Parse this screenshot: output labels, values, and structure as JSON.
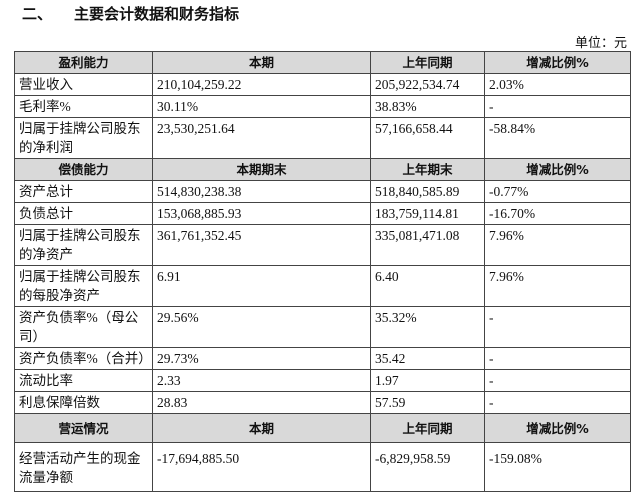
{
  "header": {
    "number": "二、",
    "title": "主要会计数据和财务指标",
    "unit": "单位：元"
  },
  "table": {
    "sections": [
      {
        "header": [
          "盈利能力",
          "本期",
          "上年同期",
          "增减比例%"
        ],
        "rows": [
          [
            "营业收入",
            "210,104,259.22",
            "205,922,534.74",
            "2.03%"
          ],
          [
            "毛利率%",
            "30.11%",
            "38.83%",
            "-"
          ],
          [
            "归属于挂牌公司股东的净利润",
            "23,530,251.64",
            "57,166,658.44",
            "-58.84%"
          ]
        ]
      },
      {
        "header": [
          "偿债能力",
          "本期期末",
          "上年期末",
          "增减比例%"
        ],
        "rows": [
          [
            "资产总计",
            "514,830,238.38",
            "518,840,585.89",
            "-0.77%"
          ],
          [
            "负债总计",
            "153,068,885.93",
            "183,759,114.81",
            "-16.70%"
          ],
          [
            "归属于挂牌公司股东的净资产",
            "361,761,352.45",
            "335,081,471.08",
            "7.96%"
          ],
          [
            "归属于挂牌公司股东的每股净资产",
            "6.91",
            "6.40",
            "7.96%"
          ],
          [
            "资产负债率%（母公司）",
            "29.56%",
            "35.32%",
            "-"
          ],
          [
            "资产负债率%（合并）",
            "29.73%",
            "35.42",
            "-"
          ],
          [
            "流动比率",
            "2.33",
            "1.97",
            "-"
          ],
          [
            "利息保障倍数",
            "28.83",
            "57.59",
            "-"
          ]
        ]
      },
      {
        "header": [
          "营运情况",
          "本期",
          "上年同期",
          "增减比例%"
        ],
        "rows": [
          [
            "经营活动产生的现金流量净额",
            "-17,694,885.50",
            "-6,829,958.59",
            "-159.08%"
          ]
        ]
      }
    ]
  }
}
